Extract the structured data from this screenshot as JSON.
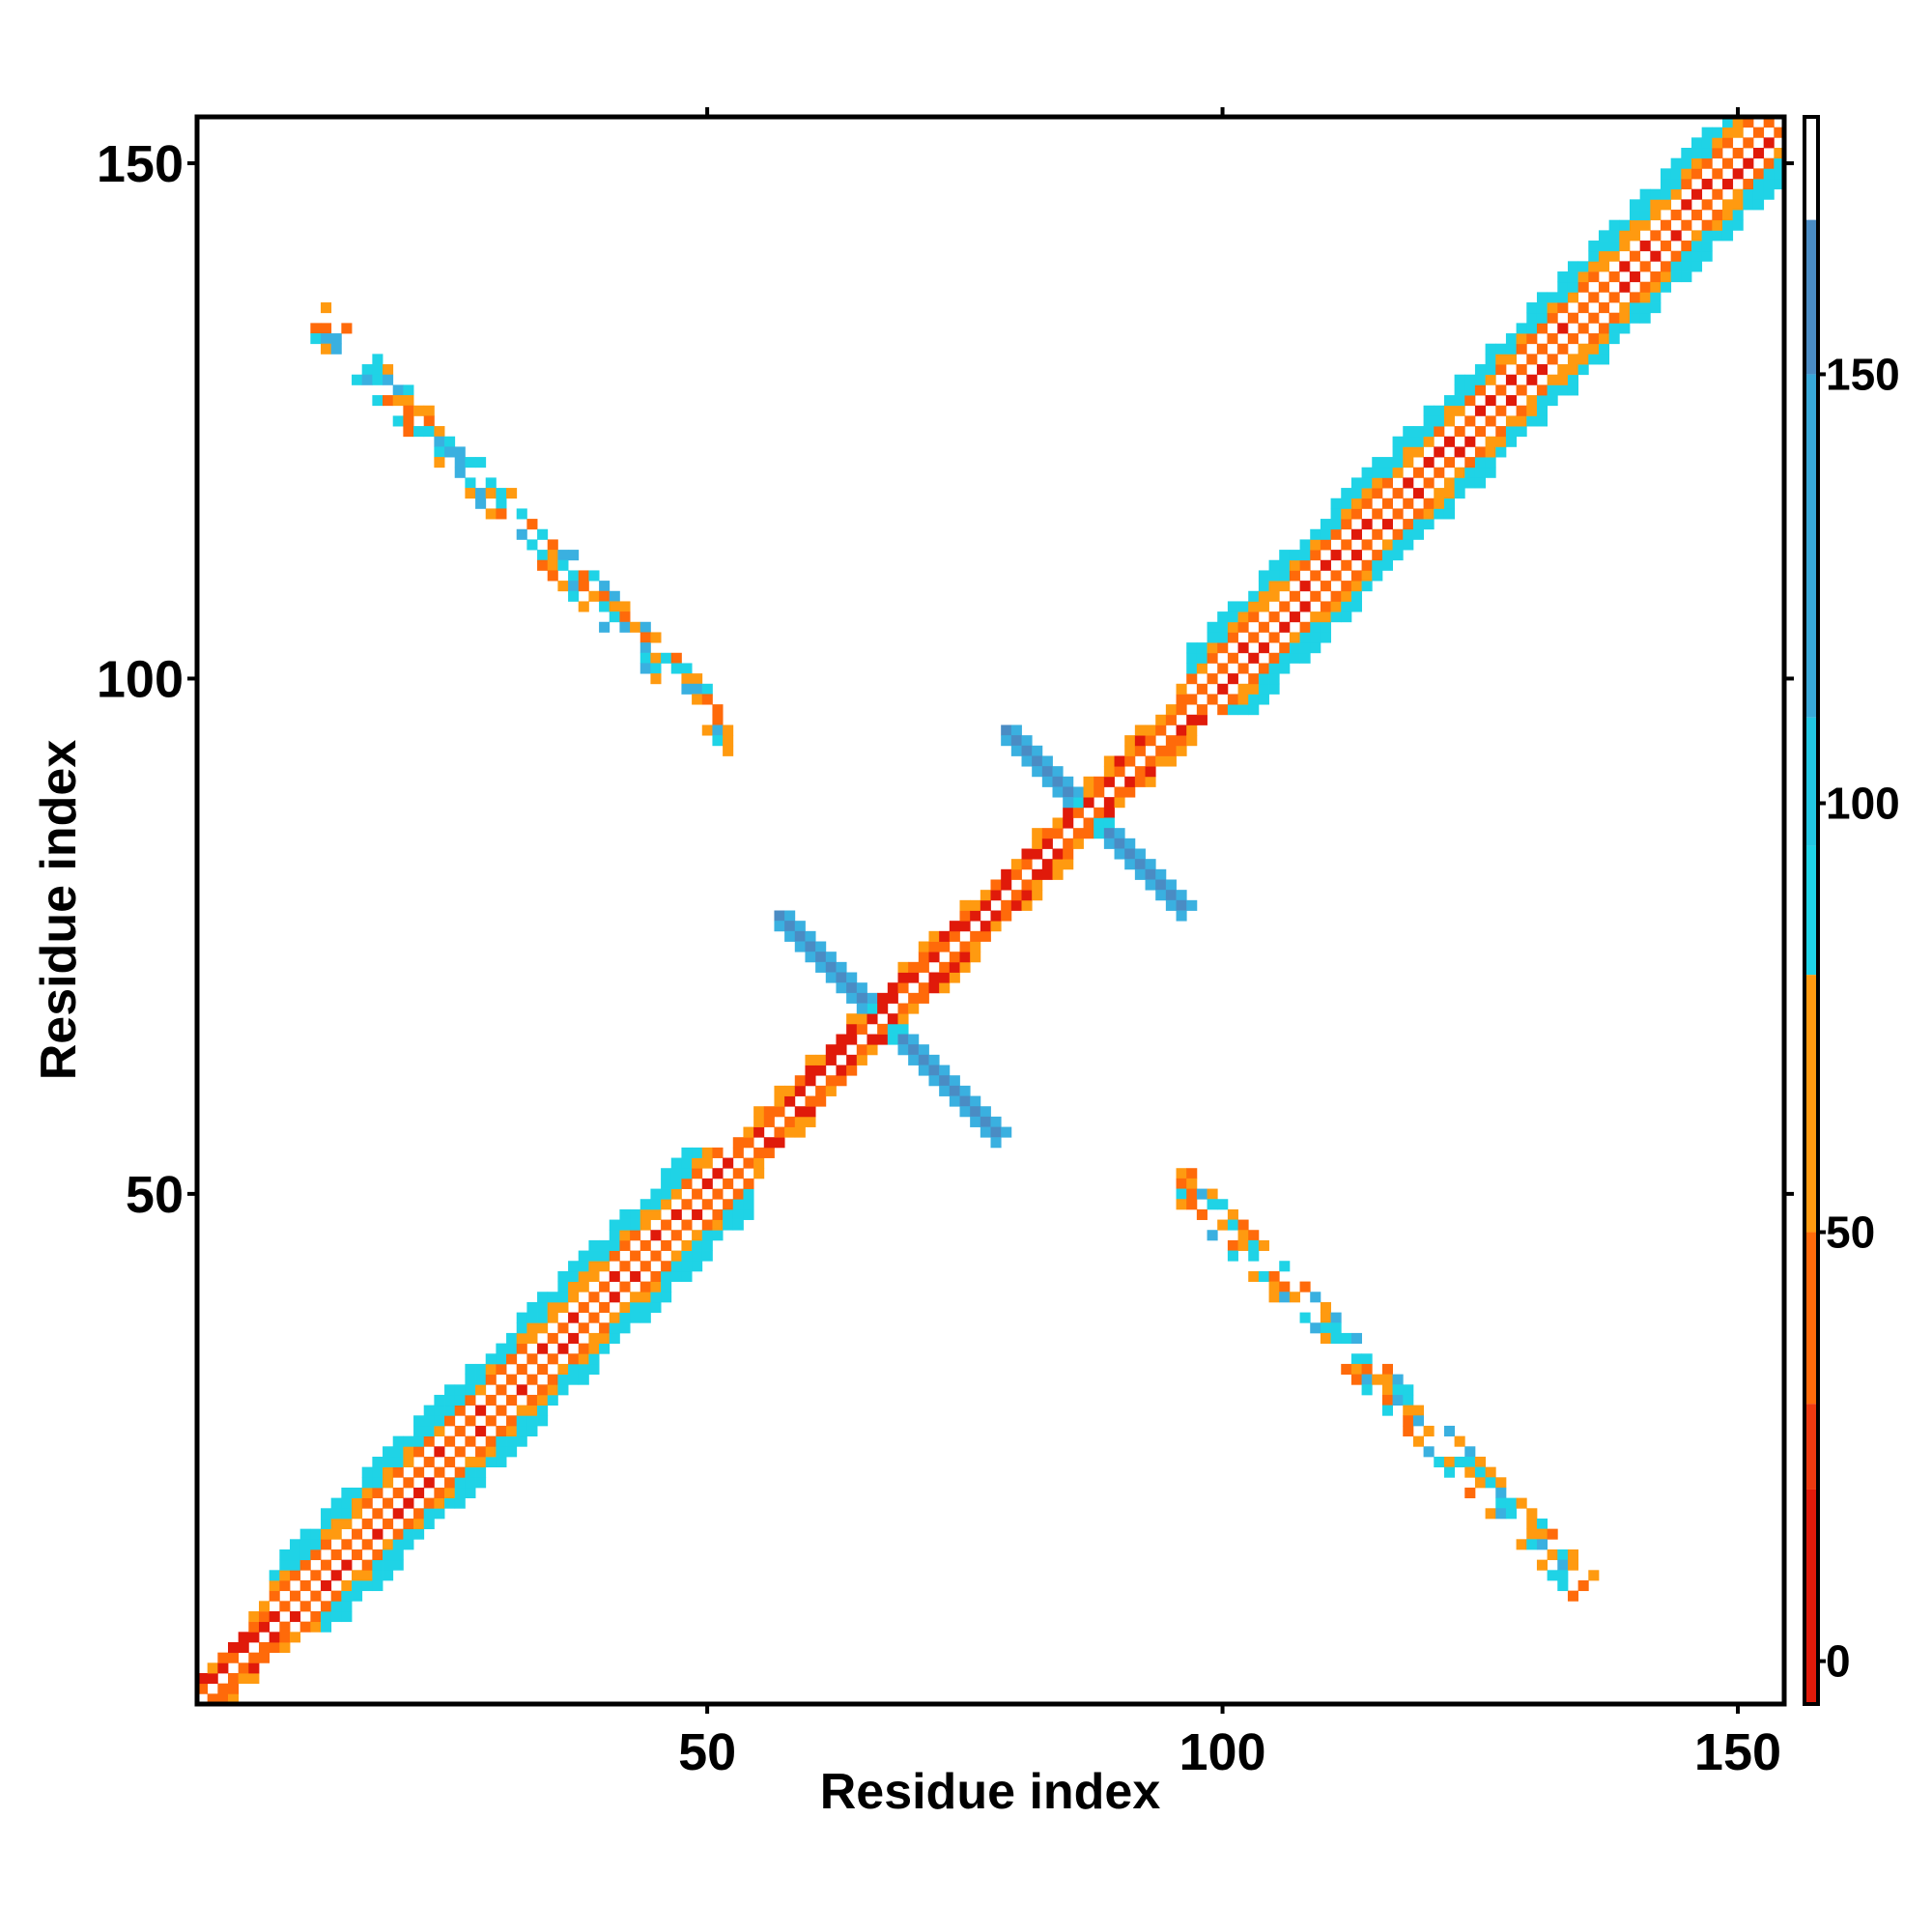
{
  "chart_data": {
    "type": "heatmap",
    "title": "",
    "xlabel": "Residue index",
    "ylabel": "Residue index",
    "xlim": [
      1,
      154
    ],
    "ylim": [
      1,
      154
    ],
    "x_ticks": [
      50,
      100,
      150
    ],
    "y_ticks": [
      50,
      100,
      150
    ],
    "grid": false,
    "colorbar": {
      "range": [
        -5,
        180
      ],
      "ticks": [
        0,
        50,
        100,
        150
      ],
      "stops": [
        {
          "from": -5,
          "to": 20,
          "color": "#e01a0a"
        },
        {
          "from": 20,
          "to": 30,
          "color": "#ee3a10"
        },
        {
          "from": 30,
          "to": 50,
          "color": "#ff6a0a"
        },
        {
          "from": 50,
          "to": 80,
          "color": "#ff9a10"
        },
        {
          "from": 80,
          "to": 95,
          "color": "#1fd3e6"
        },
        {
          "from": 95,
          "to": 110,
          "color": "#22c6e2"
        },
        {
          "from": 110,
          "to": 150,
          "color": "#38a8d8"
        },
        {
          "from": 150,
          "to": 168,
          "color": "#4a8cc4"
        },
        {
          "from": 168,
          "to": 180,
          "color": "#ffffff"
        }
      ]
    },
    "series_colors": {
      "red": "#e01a0a",
      "orange_red": "#ff6a0a",
      "orange": "#ff9a10",
      "cyan": "#1fd3e6",
      "steel_blue": "#4a8cc4",
      "sky_blue": "#3ab0e0"
    },
    "features": {
      "diagonal": {
        "from": 1,
        "to": 154
      },
      "helix_segments": [
        [
          8,
          54
        ],
        [
          97,
          154
        ]
      ],
      "antiparallel_bands": [
        {
          "x": [
            12,
            52
          ],
          "y_sum": 148
        },
        {
          "x": [
            96,
            136
          ],
          "y_sum": 148
        }
      ],
      "crossings": [
        {
          "center": [
            67,
            67
          ],
          "x": [
            57,
            78
          ]
        },
        {
          "center": [
            87,
            87
          ],
          "x": [
            79,
            96
          ]
        }
      ]
    }
  }
}
